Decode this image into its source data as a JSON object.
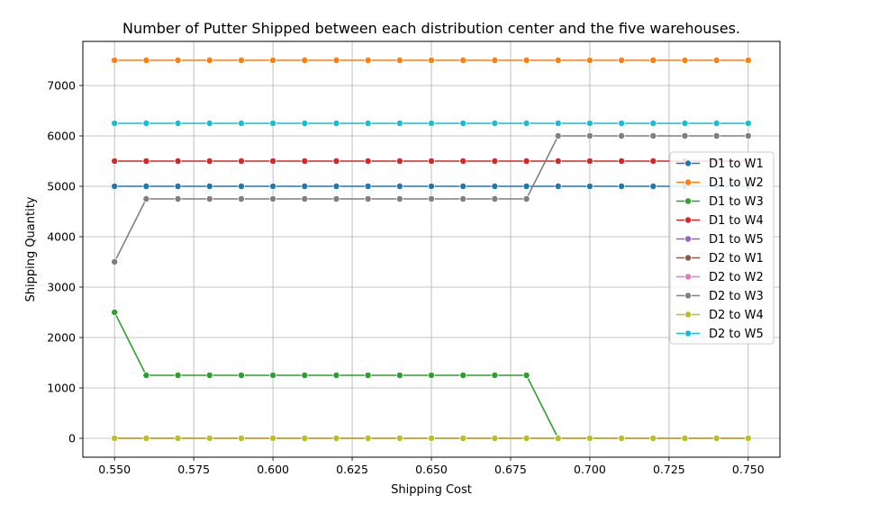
{
  "chart_data": {
    "type": "line",
    "title": "Number of Putter Shipped between each distribution center and the five warehouses.",
    "xlabel": "Shipping Cost",
    "ylabel": "Shipping Quantity",
    "xlim": [
      0.54,
      0.76
    ],
    "ylim": [
      -375,
      7875
    ],
    "grid": true,
    "legend_position": "center-right",
    "x": [
      0.55,
      0.56,
      0.57,
      0.58,
      0.59,
      0.6,
      0.61,
      0.62,
      0.63,
      0.64,
      0.65,
      0.66,
      0.67,
      0.68,
      0.69,
      0.7,
      0.71,
      0.72,
      0.73,
      0.74,
      0.75
    ],
    "x_ticks": [
      {
        "value": 0.55,
        "label": "0.550"
      },
      {
        "value": 0.575,
        "label": "0.575"
      },
      {
        "value": 0.6,
        "label": "0.600"
      },
      {
        "value": 0.625,
        "label": "0.625"
      },
      {
        "value": 0.65,
        "label": "0.650"
      },
      {
        "value": 0.675,
        "label": "0.675"
      },
      {
        "value": 0.7,
        "label": "0.700"
      },
      {
        "value": 0.725,
        "label": "0.725"
      },
      {
        "value": 0.75,
        "label": "0.750"
      }
    ],
    "y_ticks": [
      {
        "value": 0,
        "label": "0"
      },
      {
        "value": 1000,
        "label": "1000"
      },
      {
        "value": 2000,
        "label": "2000"
      },
      {
        "value": 3000,
        "label": "3000"
      },
      {
        "value": 4000,
        "label": "4000"
      },
      {
        "value": 5000,
        "label": "5000"
      },
      {
        "value": 6000,
        "label": "6000"
      },
      {
        "value": 7000,
        "label": "7000"
      }
    ],
    "series": [
      {
        "name": "D1 to W1",
        "color": "#1f77b4",
        "values": [
          5000,
          5000,
          5000,
          5000,
          5000,
          5000,
          5000,
          5000,
          5000,
          5000,
          5000,
          5000,
          5000,
          5000,
          5000,
          5000,
          5000,
          5000,
          5000,
          5000,
          5000
        ]
      },
      {
        "name": "D1 to W2",
        "color": "#ff7f0e",
        "values": [
          7500,
          7500,
          7500,
          7500,
          7500,
          7500,
          7500,
          7500,
          7500,
          7500,
          7500,
          7500,
          7500,
          7500,
          7500,
          7500,
          7500,
          7500,
          7500,
          7500,
          7500
        ]
      },
      {
        "name": "D1 to W3",
        "color": "#2ca02c",
        "values": [
          2500,
          1250,
          1250,
          1250,
          1250,
          1250,
          1250,
          1250,
          1250,
          1250,
          1250,
          1250,
          1250,
          1250,
          0,
          0,
          0,
          0,
          0,
          0,
          0
        ]
      },
      {
        "name": "D1 to W4",
        "color": "#d62728",
        "values": [
          5500,
          5500,
          5500,
          5500,
          5500,
          5500,
          5500,
          5500,
          5500,
          5500,
          5500,
          5500,
          5500,
          5500,
          5500,
          5500,
          5500,
          5500,
          5500,
          5500,
          5500
        ]
      },
      {
        "name": "D1 to W5",
        "color": "#9467bd",
        "values": [
          0,
          0,
          0,
          0,
          0,
          0,
          0,
          0,
          0,
          0,
          0,
          0,
          0,
          0,
          0,
          0,
          0,
          0,
          0,
          0,
          0
        ]
      },
      {
        "name": "D2 to W1",
        "color": "#8c564b",
        "values": [
          0,
          0,
          0,
          0,
          0,
          0,
          0,
          0,
          0,
          0,
          0,
          0,
          0,
          0,
          0,
          0,
          0,
          0,
          0,
          0,
          0
        ]
      },
      {
        "name": "D2 to W2",
        "color": "#e377c2",
        "values": [
          0,
          0,
          0,
          0,
          0,
          0,
          0,
          0,
          0,
          0,
          0,
          0,
          0,
          0,
          0,
          0,
          0,
          0,
          0,
          0,
          0
        ]
      },
      {
        "name": "D2 to W3",
        "color": "#7f7f7f",
        "values": [
          3500,
          4750,
          4750,
          4750,
          4750,
          4750,
          4750,
          4750,
          4750,
          4750,
          4750,
          4750,
          4750,
          4750,
          6000,
          6000,
          6000,
          6000,
          6000,
          6000,
          6000
        ]
      },
      {
        "name": "D2 to W4",
        "color": "#bcbd22",
        "values": [
          0,
          0,
          0,
          0,
          0,
          0,
          0,
          0,
          0,
          0,
          0,
          0,
          0,
          0,
          0,
          0,
          0,
          0,
          0,
          0,
          0
        ]
      },
      {
        "name": "D2 to W5",
        "color": "#17becf",
        "values": [
          6250,
          6250,
          6250,
          6250,
          6250,
          6250,
          6250,
          6250,
          6250,
          6250,
          6250,
          6250,
          6250,
          6250,
          6250,
          6250,
          6250,
          6250,
          6250,
          6250,
          6250
        ]
      }
    ]
  }
}
